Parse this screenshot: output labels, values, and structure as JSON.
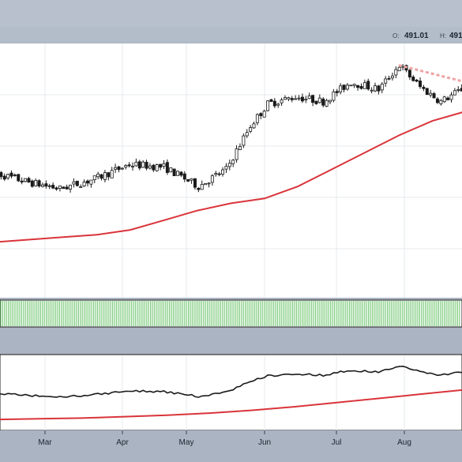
{
  "header": {
    "open_key": "O:",
    "open_value": "491.01",
    "high_key": "H:",
    "high_value": "491"
  },
  "colors": {
    "background": "#aab4c2",
    "panel": "#ffffff",
    "grid": "#e6e9ee",
    "candle": "#1a1a1a",
    "moving_average": "#d9343a",
    "trendline": "#f0a3a3",
    "volume": "#7fcc7f"
  },
  "chart_data": [
    {
      "type": "candlestick",
      "panel": "price",
      "x_tick_labels": [
        "Mar",
        "Apr",
        "May",
        "Jun",
        "Jul",
        "Aug"
      ],
      "grid": true,
      "ohlc": [],
      "moving_average": {
        "values": [
          418,
          419,
          420,
          421,
          423,
          427,
          431,
          434,
          436,
          441,
          448,
          455,
          462,
          468,
          472
        ],
        "color": "#d9343a"
      },
      "trendline": {
        "from": 491,
        "to": 484,
        "style": "dashed",
        "color": "#f0a3a3"
      }
    },
    {
      "type": "bar",
      "panel": "volume",
      "color": "#7fcc7f"
    },
    {
      "type": "line",
      "panel": "indicator",
      "series": [
        {
          "values": [],
          "color": "#1a1a1a"
        },
        {
          "values": [
            0.12,
            0.13,
            0.14,
            0.16,
            0.18,
            0.21,
            0.25,
            0.3,
            0.36,
            0.42,
            0.48,
            0.54
          ],
          "color": "#d9343a"
        }
      ]
    }
  ]
}
